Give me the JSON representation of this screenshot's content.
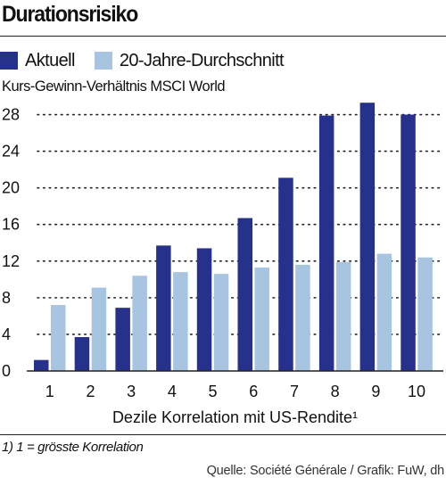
{
  "title": "Durationsrisiko",
  "footnote": "1) 1 = grösste Korrelation",
  "source": "Quelle: Société Générale / Grafik: FuW, dh",
  "colors": {
    "aktuell": "#25318a",
    "durchschnitt": "#a7c4e0",
    "text": "#111111",
    "rule": "#222222"
  },
  "chart_data": {
    "type": "bar",
    "ylabel": "Kurs-Gewinn-Verhältnis MSCI World",
    "xlabel": "Dezile Korrelation mit US-Rendite¹",
    "categories": [
      "1",
      "2",
      "3",
      "4",
      "5",
      "6",
      "7",
      "8",
      "9",
      "10"
    ],
    "series": [
      {
        "name": "Aktuell",
        "values": [
          1.2,
          3.7,
          6.9,
          13.7,
          13.4,
          16.7,
          21.1,
          27.9,
          29.3,
          28.0
        ]
      },
      {
        "name": "20-Jahre-Durchschnitt",
        "values": [
          7.2,
          9.1,
          10.4,
          10.8,
          10.6,
          11.3,
          11.6,
          11.9,
          12.8,
          12.4
        ]
      }
    ],
    "ylim": [
      0,
      30
    ],
    "yticks": [
      "0",
      "4",
      "8",
      "12",
      "16",
      "20",
      "24",
      "28"
    ],
    "grid": true,
    "legend": "top-left"
  }
}
